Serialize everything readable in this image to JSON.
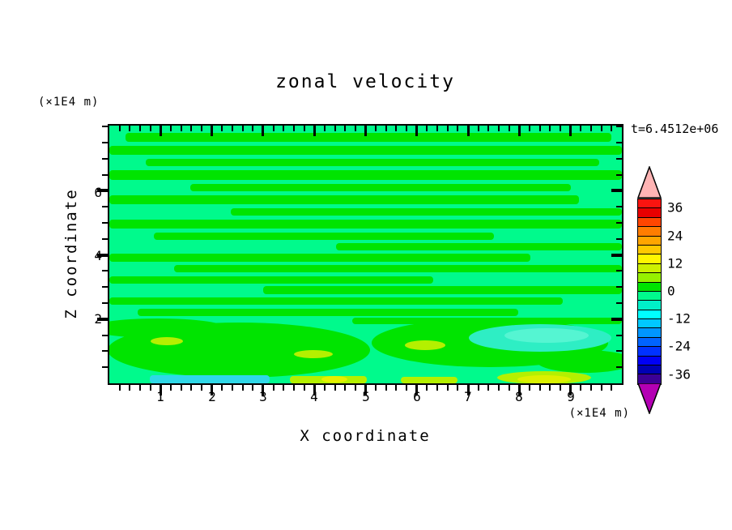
{
  "header": {
    "title": "zonal velocity",
    "time_label": "t=6.4512e+06"
  },
  "x_axis": {
    "label": "X coordinate",
    "unit": "(×1E4 m)",
    "tick_labels": [
      "1",
      "2",
      "3",
      "4",
      "5",
      "6",
      "7",
      "8",
      "9"
    ]
  },
  "z_axis": {
    "label": "Z coordinate",
    "unit": "(×1E4 m)",
    "tick_labels": [
      "6",
      "4",
      "2"
    ]
  },
  "chart_data": {
    "type": "filled_contour_heatmap",
    "title": "zonal velocity",
    "xlabel": "X coordinate",
    "ylabel": "Z coordinate",
    "x_unit": "(×1E4 m)",
    "y_unit": "(×1E4 m)",
    "time_annotation": "t=6.4512e+06",
    "x_range": [
      0,
      10
    ],
    "y_range": [
      0,
      8.03
    ],
    "x_major_ticks": [
      1,
      2,
      3,
      4,
      5,
      6,
      7,
      8,
      9
    ],
    "x_minor_step": 0.2,
    "y_major_ticks": [
      2,
      4,
      6
    ],
    "y_minor_step": 0.5,
    "grid": false,
    "legend_position": "right-colorbar",
    "colorbar": {
      "level_min": -40,
      "level_max": 40,
      "level_step": 4,
      "labels": [
        "36",
        "24",
        "12",
        "0",
        "-12",
        "-24",
        "-36"
      ],
      "label_values": [
        36,
        24,
        12,
        0,
        -12,
        -24,
        -36
      ],
      "over_arrow_color": "#ffb4b4",
      "under_arrow_color": "#b400b4",
      "colors_top_to_bottom": [
        "#fa1410",
        "#e80000",
        "#ff4600",
        "#ff7d00",
        "#ffa500",
        "#ffc800",
        "#fff500",
        "#cdf000",
        "#96f000",
        "#00e400",
        "#00fa8c",
        "#00f0c8",
        "#00ffff",
        "#00c8ff",
        "#0096ff",
        "#0064ff",
        "#0032ff",
        "#0000f5",
        "#0000b4",
        "#3c0096"
      ]
    },
    "field_summary": "Near-zero zonal velocity field: alternating thin horizontal bands of the 0..4 level (green) over a -4..0 (spring green) background in the upper 2/3; broader green blobs below z=2; small +8..12 (chartreuse/yellow) spots near z=1 and along the bottom boundary; a cyan (-12..-16) strip at bottom left; a turquoise (-8..-12) patch near x=7-8, z=1",
    "field": {
      "background_color": "#00fa8c",
      "shapes": [
        {
          "t": "r",
          "d": [
            20,
            9,
            600,
            11
          ],
          "c": "#00e400"
        },
        {
          "t": "r",
          "d": [
            0,
            25,
            633,
            11
          ],
          "c": "#00e400"
        },
        {
          "t": "r",
          "d": [
            45,
            41,
            560,
            9
          ],
          "c": "#00e400"
        },
        {
          "t": "r",
          "d": [
            0,
            55,
            633,
            12
          ],
          "c": "#00e400"
        },
        {
          "t": "r",
          "d": [
            100,
            72,
            470,
            9
          ],
          "c": "#00e400"
        },
        {
          "t": "r",
          "d": [
            0,
            86,
            580,
            11
          ],
          "c": "#00e400"
        },
        {
          "t": "r",
          "d": [
            150,
            102,
            483,
            9
          ],
          "c": "#00e400"
        },
        {
          "t": "r",
          "d": [
            0,
            116,
            633,
            11
          ],
          "c": "#00e400"
        },
        {
          "t": "r",
          "d": [
            55,
            132,
            420,
            9
          ],
          "c": "#00e400"
        },
        {
          "t": "r",
          "d": [
            280,
            145,
            353,
            9
          ],
          "c": "#00e400"
        },
        {
          "t": "r",
          "d": [
            0,
            158,
            520,
            10
          ],
          "c": "#00e400"
        },
        {
          "t": "r",
          "d": [
            80,
            172,
            553,
            9
          ],
          "c": "#00e400"
        },
        {
          "t": "r",
          "d": [
            0,
            186,
            400,
            9
          ],
          "c": "#00e400"
        },
        {
          "t": "r",
          "d": [
            190,
            198,
            443,
            10
          ],
          "c": "#00e400"
        },
        {
          "t": "r",
          "d": [
            0,
            212,
            560,
            9
          ],
          "c": "#00e400"
        },
        {
          "t": "r",
          "d": [
            35,
            226,
            470,
            9
          ],
          "c": "#00e400"
        },
        {
          "t": "r",
          "d": [
            300,
            237,
            333,
            8
          ],
          "c": "#00e400"
        },
        {
          "t": "e",
          "d": [
            60,
            250,
            85,
            12
          ],
          "c": "#00e400"
        },
        {
          "t": "e",
          "d": [
            160,
            277,
            162,
            34
          ],
          "c": "#00e400"
        },
        {
          "t": "e",
          "d": [
            470,
            268,
            146,
            30
          ],
          "c": "#00e400"
        },
        {
          "t": "e",
          "d": [
            588,
            291,
            60,
            14
          ],
          "c": "#00e400"
        },
        {
          "t": "e",
          "d": [
            71,
            266,
            20,
            5
          ],
          "c": "#b4f000"
        },
        {
          "t": "e",
          "d": [
            252,
            282,
            24,
            5
          ],
          "c": "#b4f000"
        },
        {
          "t": "e",
          "d": [
            390,
            271,
            25,
            6
          ],
          "c": "#b4f000"
        },
        {
          "t": "e",
          "d": [
            532,
            262,
            88,
            17
          ],
          "c": "#2eeec4"
        },
        {
          "t": "e",
          "d": [
            540,
            259,
            52,
            9
          ],
          "c": "#55f5d2"
        },
        {
          "t": "r",
          "d": [
            50,
            308,
            148,
            10
          ],
          "c": "#2fd8e8"
        },
        {
          "t": "r",
          "d": [
            223,
            309,
            95,
            9
          ],
          "c": "#b4f000"
        },
        {
          "t": "e",
          "d": [
            278,
            313,
            16,
            4
          ],
          "c": "#e6f000"
        },
        {
          "t": "r",
          "d": [
            360,
            310,
            70,
            8
          ],
          "c": "#b4f000"
        },
        {
          "t": "e",
          "d": [
            537,
            311,
            58,
            8
          ],
          "c": "#b4f000"
        },
        {
          "t": "e",
          "d": [
            537,
            313,
            33,
            5
          ],
          "c": "#dcf000"
        }
      ]
    }
  }
}
